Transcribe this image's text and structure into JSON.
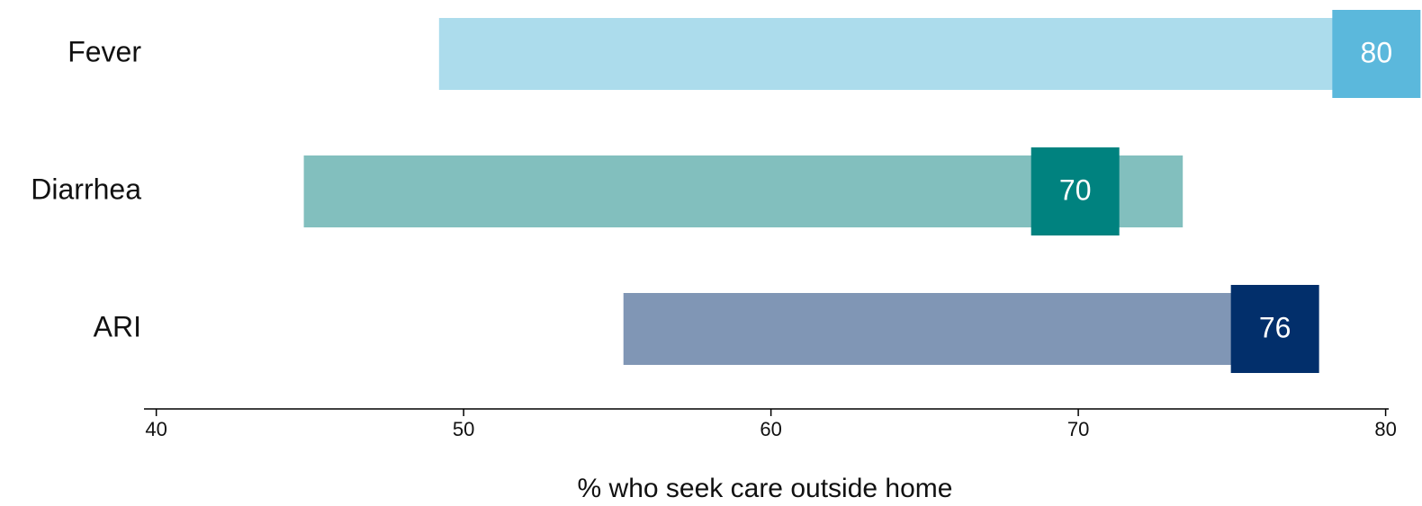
{
  "chart_data": {
    "type": "range",
    "categories": [
      "Fever",
      "Diarrhea",
      "ARI"
    ],
    "low": [
      49.2,
      44.8,
      55.2
    ],
    "high": [
      80,
      73.4,
      77.8
    ],
    "values": [
      79.7,
      69.9,
      76.4
    ],
    "value_labels": [
      "80",
      "70",
      "76"
    ],
    "bar_colors": [
      "#acdcec",
      "#82bfbe",
      "#8096b5"
    ],
    "marker_colors": [
      "#5bb8dc",
      "#00827f",
      "#022f6b"
    ],
    "xlabel": "% who seek care outside home",
    "xlim": [
      39.6,
      80.1
    ],
    "xticks": [
      40,
      50,
      60,
      70,
      80
    ]
  }
}
